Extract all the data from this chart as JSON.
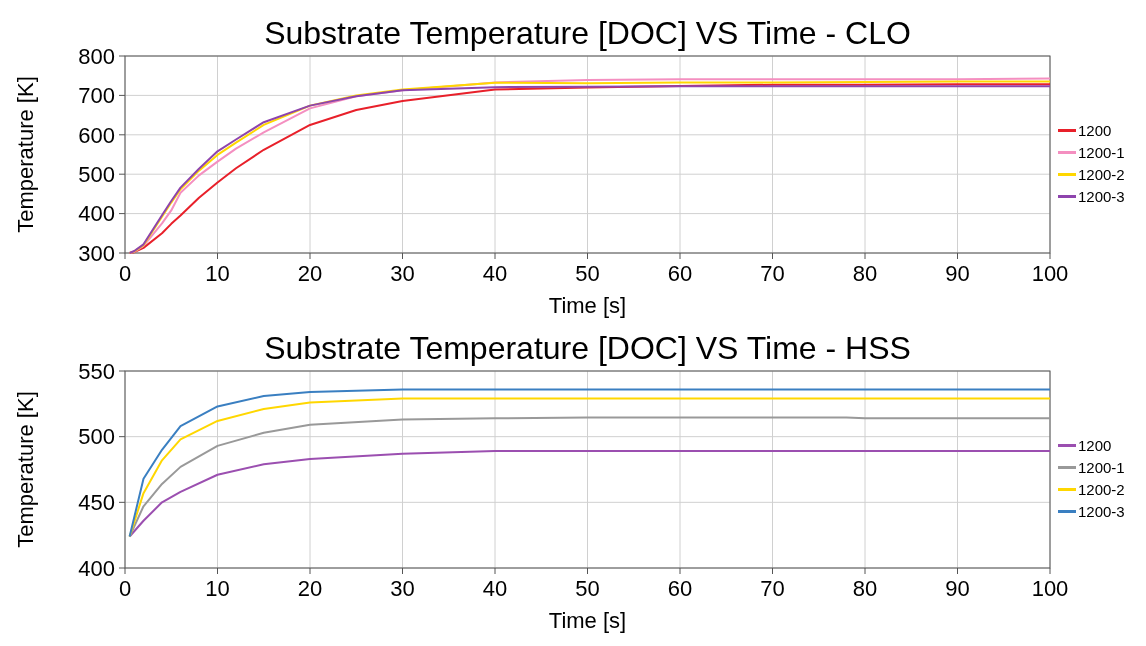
{
  "chart_data": [
    {
      "type": "line",
      "title": "Substrate Temperature [DOC] VS Time - CLO",
      "xlabel": "Time [s]",
      "ylabel": "Temperature [K]",
      "xlim": [
        0,
        100
      ],
      "xticks": [
        0,
        10,
        20,
        30,
        40,
        50,
        60,
        70,
        80,
        90,
        100
      ],
      "ylim": [
        300,
        800
      ],
      "yticks": [
        300,
        400,
        500,
        600,
        700,
        800
      ],
      "grid": true,
      "legend": "right",
      "marker": "none",
      "line_style": "solid",
      "x": [
        0.5,
        1,
        2,
        4,
        5,
        6,
        8,
        10,
        12,
        15,
        20,
        25,
        30,
        40,
        50,
        60,
        70,
        80,
        90,
        100
      ],
      "series": [
        {
          "name": "1200",
          "color": "#e8202a",
          "values": [
            300,
            302,
            313,
            350,
            374,
            395,
            440,
            479,
            515,
            562,
            625,
            663,
            686,
            715,
            720,
            724,
            727,
            727,
            728,
            728
          ]
        },
        {
          "name": "1200-1",
          "color": "#f48fc0",
          "values": [
            300,
            303,
            318,
            375,
            408,
            453,
            497,
            532,
            565,
            606,
            667,
            698,
            713,
            733,
            739,
            741,
            741,
            741,
            741,
            743
          ]
        },
        {
          "name": "1200-2",
          "color": "#ffd700",
          "values": [
            300,
            304,
            320,
            392,
            428,
            462,
            509,
            549,
            580,
            625,
            674,
            700,
            715,
            732,
            731,
            733,
            733,
            734,
            735,
            735
          ]
        },
        {
          "name": "1200-3",
          "color": "#8e44ad",
          "values": [
            300,
            305,
            322,
            396,
            432,
            466,
            514,
            558,
            588,
            632,
            674,
            698,
            713,
            721,
            722,
            723,
            723,
            723,
            723,
            723
          ]
        }
      ]
    },
    {
      "type": "line",
      "title": "Substrate Temperature [DOC] VS Time - HSS",
      "xlabel": "Time [s]",
      "ylabel": "Temperature [K]",
      "xlim": [
        0,
        100
      ],
      "xticks": [
        0,
        10,
        20,
        30,
        40,
        50,
        60,
        70,
        80,
        90,
        100
      ],
      "ylim": [
        400,
        550
      ],
      "yticks": [
        400,
        450,
        500,
        550
      ],
      "grid": true,
      "legend": "right",
      "marker": "none",
      "line_style": "solid",
      "x": [
        0.5,
        2,
        4,
        6,
        10,
        15,
        20,
        30,
        40,
        50,
        60,
        70,
        78,
        80,
        90,
        100
      ],
      "series": [
        {
          "name": "1200",
          "color": "#9b4fb0",
          "values": [
            424,
            436,
            450,
            458,
            471,
            479,
            483,
            487,
            489,
            489,
            489,
            489,
            489,
            489,
            489,
            489
          ]
        },
        {
          "name": "1200-1",
          "color": "#999999",
          "values": [
            424,
            447,
            464,
            477,
            493,
            503,
            509,
            513,
            514,
            514.5,
            514.5,
            514.5,
            514.5,
            514,
            514,
            514
          ]
        },
        {
          "name": "1200-2",
          "color": "#ffd700",
          "values": [
            424,
            457,
            482,
            498,
            512,
            521,
            526,
            529,
            529,
            529,
            529,
            529,
            529,
            529,
            529,
            529
          ]
        },
        {
          "name": "1200-3",
          "color": "#3a7fc1",
          "values": [
            424,
            468,
            490,
            508,
            523,
            531,
            534,
            536,
            536,
            536,
            536,
            536,
            536,
            536,
            536,
            536
          ]
        }
      ]
    }
  ]
}
